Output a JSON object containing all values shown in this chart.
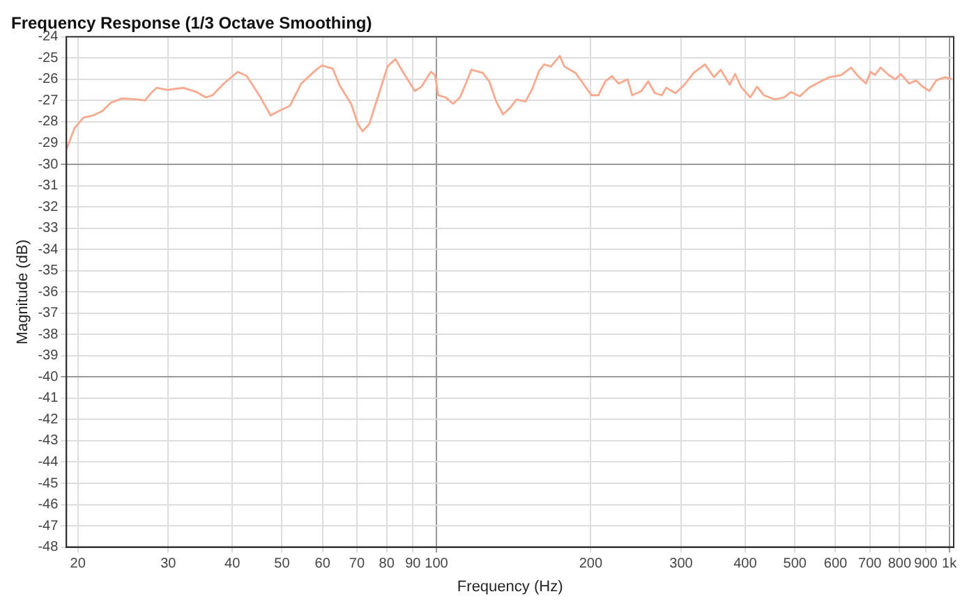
{
  "chart_data": {
    "type": "line",
    "title": "Frequency Response (1/3 Octave Smoothing)",
    "xlabel": "Frequency (Hz)",
    "ylabel": "Magnitude (dB)",
    "log": "x",
    "grid": true,
    "legend": false,
    "marker": "none",
    "line_style": "solid",
    "xlim": [
      19,
      1020
    ],
    "ylim": [
      -48,
      -24
    ],
    "xticks": [
      20,
      30,
      40,
      50,
      60,
      70,
      80,
      90,
      100,
      200,
      300,
      400,
      500,
      600,
      700,
      800,
      900,
      {
        "value": 1000,
        "label": "1k"
      }
    ],
    "yticks": [
      -24,
      -25,
      -26,
      -27,
      -28,
      -29,
      -30,
      -31,
      -32,
      -33,
      -34,
      -35,
      -36,
      -37,
      -38,
      -39,
      -40,
      -41,
      -42,
      -43,
      -44,
      -45,
      -46,
      -47,
      -48
    ],
    "series": [
      {
        "color": "#f9a98e",
        "x": [
          19,
          19.7,
          20.5,
          21.4,
          22.3,
          23.2,
          24.4,
          26.2,
          27,
          27.9,
          28.5,
          29.9,
          32.1,
          34.1,
          35.5,
          36.6,
          38.5,
          41,
          42.7,
          45.4,
          47.5,
          49.2,
          51.8,
          54.5,
          58,
          59.8,
          62.8,
          64.8,
          68.2,
          70.3,
          71.8,
          74,
          77.1,
          80.3,
          83.2,
          86.3,
          90.8,
          93.5,
          97.5,
          99.4,
          100.8,
          104.2,
          107.8,
          111.2,
          114.6,
          117,
          123.1,
          126.8,
          130.8,
          134.9,
          139.1,
          143.3,
          149.2,
          153.8,
          158.6,
          162.2,
          167.2,
          174,
          177.6,
          186.8,
          200.6,
          206.9,
          213.4,
          219.9,
          226.6,
          236,
          240.9,
          251,
          258.8,
          266.8,
          275.1,
          280.7,
          292.5,
          304.7,
          317.3,
          333.8,
          347.7,
          358.4,
          373.2,
          382.5,
          392.7,
          409.2,
          421.9,
          435,
          457,
          476.4,
          491.2,
          511.2,
          532.8,
          560.9,
          584.4,
          615.2,
          643.4,
          666.7,
          688.3,
          702.1,
          716.2,
          734.3,
          762,
          785.4,
          804.6,
          835.3,
          861,
          887.4,
          914.6,
          942.8,
          981.4,
          1011
        ],
        "values": [
          -29.3,
          -28.3,
          -27.8,
          -27.7,
          -27.5,
          -27.1,
          -26.9,
          -26.95,
          -27.0,
          -26.6,
          -26.4,
          -26.5,
          -26.4,
          -26.6,
          -26.85,
          -26.75,
          -26.2,
          -25.65,
          -25.85,
          -26.85,
          -27.7,
          -27.5,
          -27.25,
          -26.2,
          -25.6,
          -25.35,
          -25.5,
          -26.3,
          -27.15,
          -28.1,
          -28.45,
          -28.1,
          -26.75,
          -25.4,
          -25.05,
          -25.7,
          -26.55,
          -26.35,
          -25.65,
          -25.8,
          -26.75,
          -26.85,
          -27.15,
          -26.85,
          -26.1,
          -25.55,
          -25.7,
          -26.1,
          -27.05,
          -27.65,
          -27.35,
          -26.95,
          -27.05,
          -26.45,
          -25.6,
          -25.3,
          -25.4,
          -24.9,
          -25.4,
          -25.7,
          -26.75,
          -26.75,
          -26.1,
          -25.85,
          -26.2,
          -26.0,
          -26.75,
          -26.55,
          -26.1,
          -26.65,
          -26.75,
          -26.4,
          -26.65,
          -26.25,
          -25.7,
          -25.3,
          -25.9,
          -25.55,
          -26.25,
          -25.75,
          -26.35,
          -26.85,
          -26.35,
          -26.75,
          -26.95,
          -26.85,
          -26.6,
          -26.8,
          -26.4,
          -26.1,
          -25.9,
          -25.8,
          -25.45,
          -25.9,
          -26.2,
          -25.65,
          -25.8,
          -25.45,
          -25.8,
          -26.0,
          -25.75,
          -26.2,
          -26.05,
          -26.35,
          -26.55,
          -26.05,
          -25.9,
          -26.0
        ]
      }
    ]
  }
}
